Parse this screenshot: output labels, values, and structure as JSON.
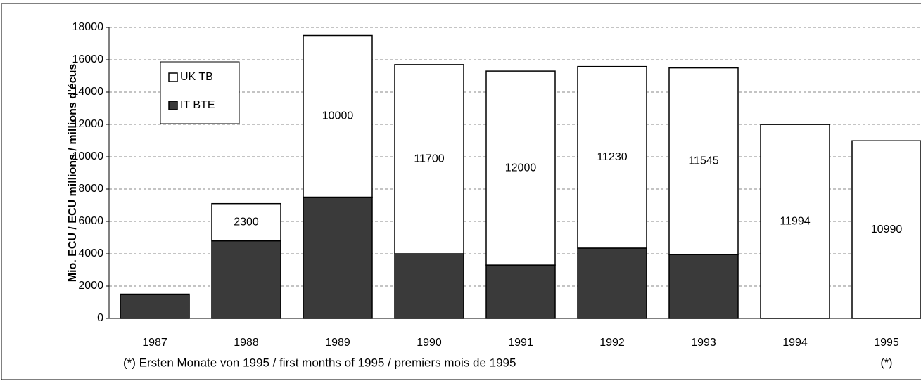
{
  "chart_data": {
    "type": "stacked_bar",
    "y_label": "Mio. ECU / ECU millions / millions d'écus",
    "categories": [
      "1987",
      "1988",
      "1989",
      "1990",
      "1991",
      "1992",
      "1993",
      "1994",
      "1995"
    ],
    "series": [
      {
        "name": "IT BTE",
        "color": "#3a3a3a",
        "values": [
          1500,
          4800,
          7500,
          4000,
          3300,
          4350,
          3950,
          0,
          0
        ]
      },
      {
        "name": "UK TB",
        "color": "#ffffff",
        "values": [
          0,
          2300,
          10000,
          11700,
          12000,
          11230,
          11545,
          11994,
          10990
        ],
        "value_labels": [
          null,
          "2300",
          "10000",
          "11700",
          "12000",
          "11230",
          "11545",
          "11994",
          "10990"
        ]
      }
    ],
    "ylim": [
      0,
      18000
    ],
    "yticks": [
      0,
      2000,
      4000,
      6000,
      8000,
      10000,
      12000,
      14000,
      16000,
      18000
    ],
    "grid": true,
    "legend": "top-left",
    "annotations": [
      "(*) Ersten Monate von 1995 / first months of 1995 / premiers mois de 1995",
      "(*)"
    ]
  }
}
